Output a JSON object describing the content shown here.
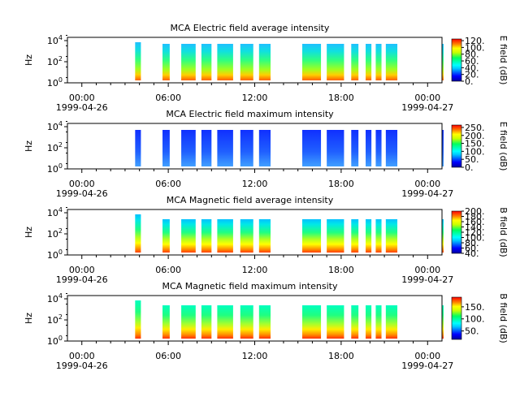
{
  "figure": {
    "date_start": "1999-04-26",
    "date_end": "1999-04-27"
  },
  "chart_data": [
    {
      "type": "heatmap",
      "title": "MCA  Electric field average intensity",
      "ylabel": "Hz",
      "colorbar_label": "E field (dB)",
      "colorbar_ticks": [
        "0.",
        "20.",
        "40.",
        "60.",
        "80.",
        "100.",
        "120."
      ],
      "colorbar_range": [
        0,
        125
      ],
      "y_scale": "log",
      "y_ticks": [
        "10^0",
        "10^2",
        "10^4"
      ],
      "x_ticks": [
        "00:00",
        "06:00",
        "12:00",
        "18:00",
        "00:00"
      ],
      "x_range_hours": [
        -1,
        25
      ],
      "data_intervals_hours": [
        [
          3.7,
          4.1
        ],
        [
          5.6,
          6.1
        ],
        [
          6.9,
          7.9
        ],
        [
          8.3,
          9.0
        ],
        [
          9.4,
          10.5
        ],
        [
          11.0,
          11.9
        ],
        [
          12.3,
          13.1
        ],
        [
          15.3,
          16.6
        ],
        [
          17.0,
          18.2
        ],
        [
          18.7,
          19.2
        ],
        [
          19.7,
          20.1
        ],
        [
          20.4,
          20.8
        ],
        [
          21.1,
          21.9
        ],
        [
          25.0,
          25.1
        ]
      ]
    },
    {
      "type": "heatmap",
      "title": "MCA  Electric field maximum intensity",
      "ylabel": "Hz",
      "colorbar_label": "E field (dB)",
      "colorbar_ticks": [
        "0.",
        "50.",
        "100.",
        "150.",
        "200.",
        "250."
      ],
      "colorbar_range": [
        0,
        265
      ],
      "y_scale": "log",
      "y_ticks": [
        "10^0",
        "10^2",
        "10^4"
      ],
      "x_ticks": [
        "00:00",
        "06:00",
        "12:00",
        "18:00",
        "00:00"
      ],
      "x_range_hours": [
        -1,
        25
      ],
      "data_intervals_hours": [
        [
          3.7,
          4.1
        ],
        [
          5.6,
          6.1
        ],
        [
          6.9,
          7.9
        ],
        [
          8.3,
          9.0
        ],
        [
          9.4,
          10.5
        ],
        [
          11.0,
          11.9
        ],
        [
          12.3,
          13.1
        ],
        [
          15.3,
          16.6
        ],
        [
          17.0,
          18.2
        ],
        [
          18.7,
          19.2
        ],
        [
          19.7,
          20.1
        ],
        [
          20.4,
          20.8
        ],
        [
          21.1,
          21.9
        ],
        [
          25.0,
          25.1
        ]
      ]
    },
    {
      "type": "heatmap",
      "title": "MCA  Magnetic field average intensity",
      "ylabel": "Hz",
      "colorbar_label": "B field (dB)",
      "colorbar_ticks": [
        "40.",
        "60.",
        "80.",
        "100.",
        "120.",
        "140.",
        "160.",
        "180.",
        "200."
      ],
      "colorbar_range": [
        40,
        200
      ],
      "y_scale": "log",
      "y_ticks": [
        "10^0",
        "10^2",
        "10^4"
      ],
      "x_ticks": [
        "00:00",
        "06:00",
        "12:00",
        "18:00",
        "00:00"
      ],
      "x_range_hours": [
        -1,
        25
      ],
      "data_intervals_hours": [
        [
          3.7,
          4.1
        ],
        [
          5.6,
          6.1
        ],
        [
          6.9,
          7.9
        ],
        [
          8.3,
          9.0
        ],
        [
          9.4,
          10.5
        ],
        [
          11.0,
          11.9
        ],
        [
          12.3,
          13.1
        ],
        [
          15.3,
          16.6
        ],
        [
          17.0,
          18.2
        ],
        [
          18.7,
          19.2
        ],
        [
          19.7,
          20.1
        ],
        [
          20.4,
          20.8
        ],
        [
          21.1,
          21.9
        ],
        [
          25.0,
          25.1
        ]
      ]
    },
    {
      "type": "heatmap",
      "title": "MCA  Magnetic field maximum intensity",
      "ylabel": "Hz",
      "colorbar_label": "B field (dB)",
      "colorbar_ticks": [
        "50.",
        "100.",
        "150."
      ],
      "colorbar_range": [
        15,
        190
      ],
      "y_scale": "log",
      "y_ticks": [
        "10^0",
        "10^2",
        "10^4"
      ],
      "x_ticks": [
        "00:00",
        "06:00",
        "12:00",
        "18:00",
        "00:00"
      ],
      "x_range_hours": [
        -1,
        25
      ],
      "data_intervals_hours": [
        [
          3.7,
          4.1
        ],
        [
          5.6,
          6.1
        ],
        [
          6.9,
          7.9
        ],
        [
          8.3,
          9.0
        ],
        [
          9.4,
          10.5
        ],
        [
          11.0,
          11.9
        ],
        [
          12.3,
          13.1
        ],
        [
          15.3,
          16.6
        ],
        [
          17.0,
          18.2
        ],
        [
          18.7,
          19.2
        ],
        [
          19.7,
          20.1
        ],
        [
          20.4,
          20.8
        ],
        [
          21.1,
          21.9
        ],
        [
          25.0,
          25.1
        ]
      ]
    }
  ]
}
